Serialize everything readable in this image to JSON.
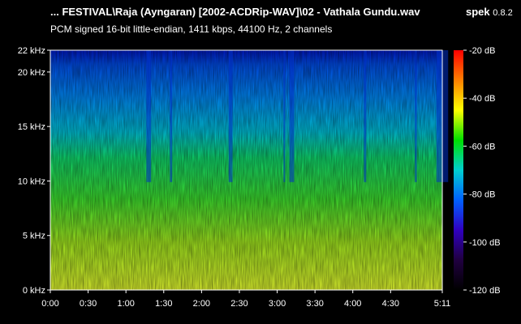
{
  "header": {
    "file_title": "... FESTIVAL\\Raja (Ayngaran) [2002-ACDRip-WAV]\\02 - Vathala Gundu.wav",
    "app_name": "spek",
    "app_version": "0.8.2",
    "audio_info": "PCM signed 16-bit little-endian, 1411 kbps, 44100 Hz, 2 channels"
  },
  "chart_data": {
    "type": "heatmap",
    "title": "",
    "xlabel": "",
    "ylabel": "",
    "x_axis": {
      "unit": "time (m:ss)",
      "range": [
        "0:00",
        "5:11"
      ],
      "ticks": [
        "0:00",
        "0:30",
        "1:00",
        "1:30",
        "2:00",
        "2:30",
        "3:00",
        "3:30",
        "4:00",
        "4:30",
        "5:11"
      ]
    },
    "y_axis": {
      "unit": "kHz",
      "range": [
        0,
        22
      ],
      "ticks": [
        "0 kHz",
        "5 kHz",
        "10 kHz",
        "15 kHz",
        "20 kHz",
        "22 kHz"
      ]
    },
    "colorbar": {
      "unit": "dB",
      "range": [
        -120,
        -20
      ],
      "ticks": [
        "-20 dB",
        "-40 dB",
        "-60 dB",
        "-80 dB",
        "-100 dB",
        "-120 dB"
      ],
      "colors": [
        "#ff0000",
        "#ff8000",
        "#ffff00",
        "#00e000",
        "#00d0d0",
        "#0060ff",
        "#3000c0",
        "#200040",
        "#000000"
      ]
    },
    "legend": "right"
  }
}
